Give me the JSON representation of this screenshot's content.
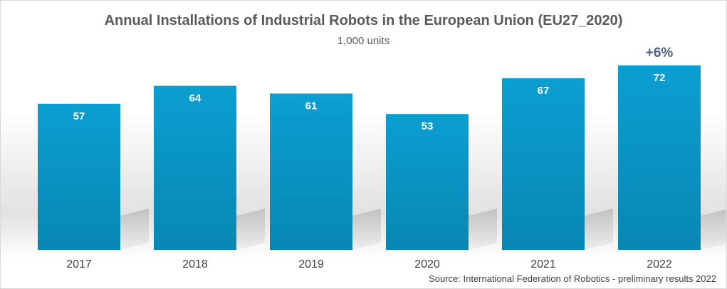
{
  "chart_data": {
    "type": "bar",
    "title": "Annual Installations of Industrial Robots in the European Union (EU27_2020)",
    "subtitle": "1,000 units",
    "categories": [
      "2017",
      "2018",
      "2019",
      "2020",
      "2021",
      "2022"
    ],
    "values": [
      57,
      64,
      61,
      53,
      67,
      72
    ],
    "data_labels": [
      "57",
      "64",
      "61",
      "53",
      "67",
      "72"
    ],
    "annotation": {
      "category": "2022",
      "text": "+6%"
    },
    "source": "Source: International Federation of Robotics - preliminary results 2022",
    "grid": false,
    "legend": "none",
    "bar_color": "#0a9fd2",
    "bar_color_dark": "#0887b3"
  }
}
